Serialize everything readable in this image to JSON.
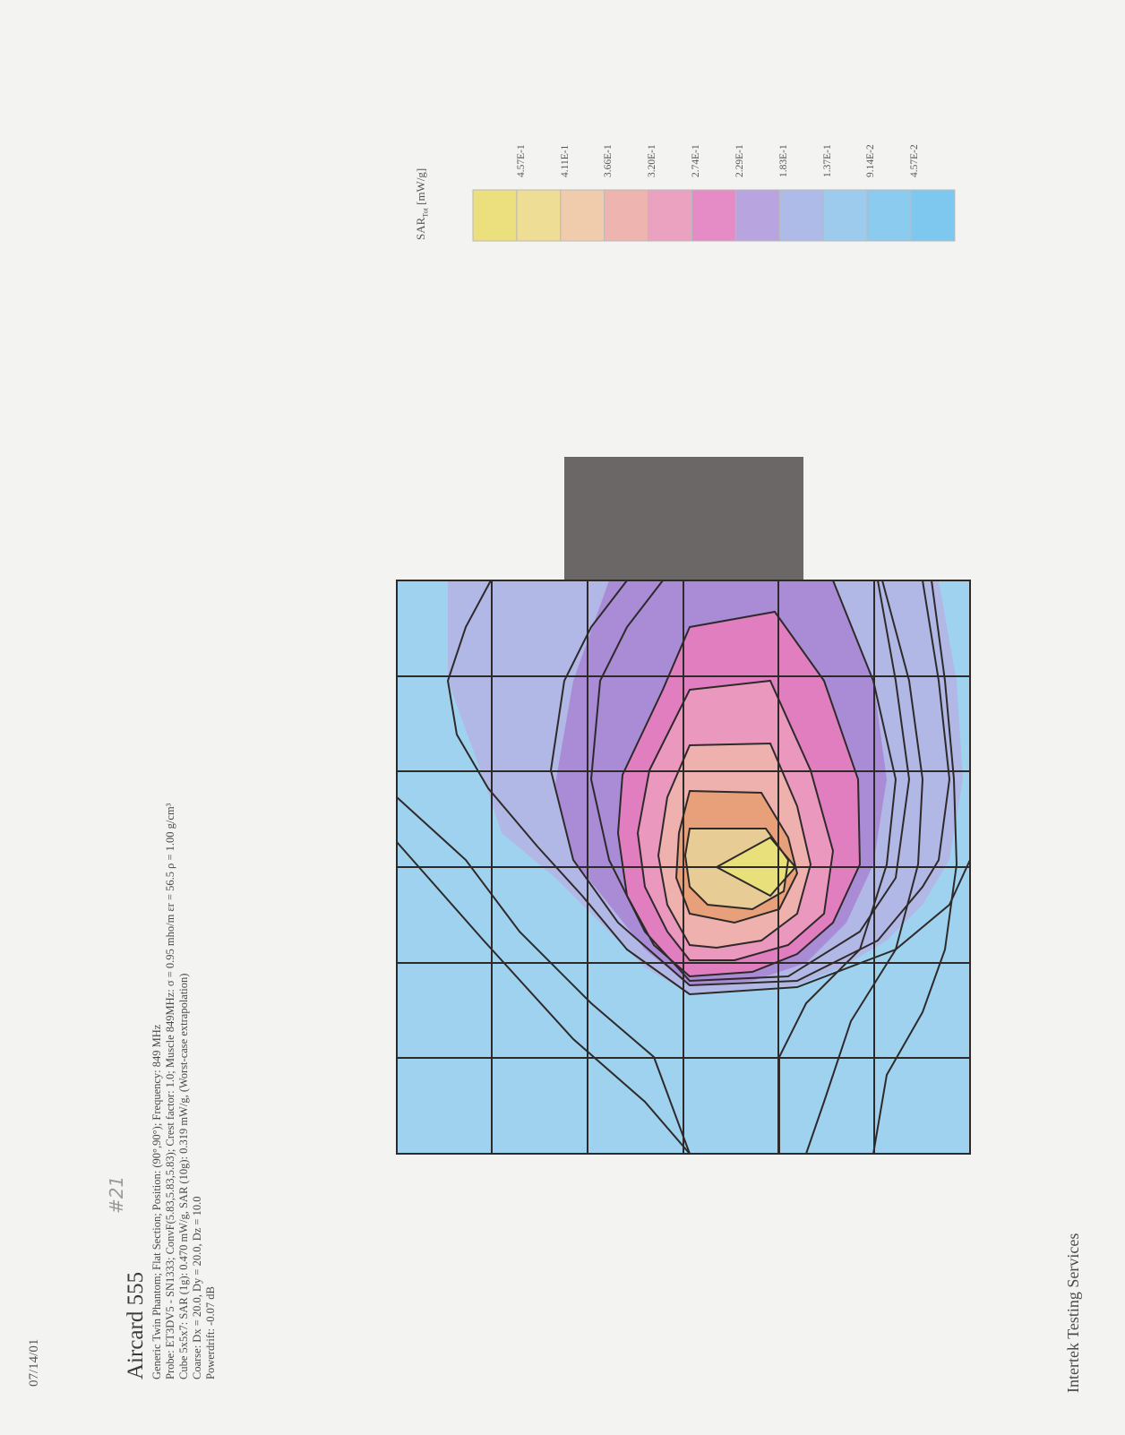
{
  "header": {
    "date": "07/14/01"
  },
  "handwritten_note": "#21",
  "title": "Aircard 555",
  "info_lines": [
    "Generic Twin Phantom; Flat Section; Position: (90°,90°); Frequency: 849 MHz",
    "Probe: ET3DV5 - SN1333; ConvF(5.83,5.83,5.83); Crest factor: 1.0; Muscle 849MHz: σ = 0.95 mho/m εr = 56.5 ρ = 1.00 g/cm³",
    "Cube 5x5x7: SAR (1g): 0.470 mW/g, SAR (10g): 0.319 mW/g, (Worst-case extrapolation)",
    "Coarse: Dx = 20.0, Dy = 20.0, Dz = 10.0",
    "Powerdrift: -0.07 dB"
  ],
  "legend": {
    "title": "SAR",
    "title_subscript": "Tot",
    "unit": "[mW/g]",
    "ticks": [
      "4.57E-1",
      "4.11E-1",
      "3.66E-1",
      "3.20E-1",
      "2.74E-1",
      "2.29E-1",
      "1.83E-1",
      "1.37E-1",
      "9.14E-2",
      "4.57E-2"
    ],
    "colors": [
      "#ecdf7e",
      "#eedd94",
      "#f0ccac",
      "#eeb4b0",
      "#eaa2c0",
      "#e58cc6",
      "#b8a4de",
      "#aebbe8",
      "#9ccbee",
      "#8ccbf0",
      "#7ec8f0"
    ]
  },
  "footer": {
    "company": "Intertek Testing Services"
  }
}
